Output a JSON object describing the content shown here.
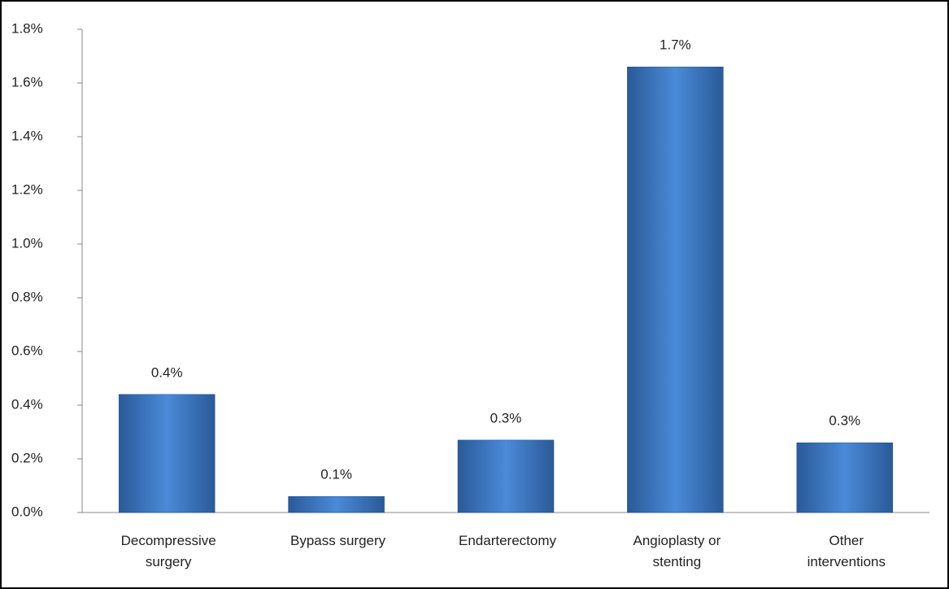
{
  "chart_data": {
    "type": "bar",
    "categories": [
      "Decompressive surgery",
      "Bypass surgery",
      "Endarterectomy",
      "Angioplasty or stenting",
      "Other interventions"
    ],
    "values": [
      0.44,
      0.06,
      0.27,
      1.66,
      0.26
    ],
    "value_labels": [
      "0.4%",
      "0.1%",
      "0.3%",
      "1.7%",
      "0.3%"
    ],
    "color": "#3c78c8",
    "ylim": [
      0,
      1.8
    ],
    "yticks": [
      {
        "value": 0,
        "label": "0.0%"
      },
      {
        "value": 0.2,
        "label": "0.2%"
      },
      {
        "value": 0.4,
        "label": "0.4%"
      },
      {
        "value": 0.6,
        "label": "0.6%"
      },
      {
        "value": 0.8,
        "label": "0.8%"
      },
      {
        "value": 1.0,
        "label": "1.0%"
      },
      {
        "value": 1.2,
        "label": "1.2%"
      },
      {
        "value": 1.4,
        "label": "1.4%"
      },
      {
        "value": 1.6,
        "label": "1.6%"
      },
      {
        "value": 1.8,
        "label": "1.8%"
      }
    ],
    "grid": false
  }
}
